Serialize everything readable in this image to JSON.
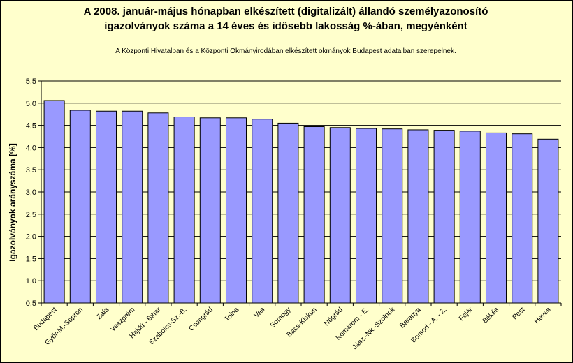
{
  "chart_data": {
    "type": "bar",
    "title": [
      "A 2008. január-május hónapban elkészített (digitalizált) állandó személyazonosító",
      "igazolványok száma a 14 éves és idősebb lakosság %-ában, megyénként"
    ],
    "subtitle": "A  Központi Hivatalban és a Központi Okmányirodában elkészített  okmányok Budapest adataiban szerepelnek.",
    "xlabel": "",
    "ylabel": "Igazolványok arányszáma [%]",
    "ylim": [
      0.5,
      5.5
    ],
    "yticks": [
      "0,5",
      "1,0",
      "1,5",
      "2,0",
      "2,5",
      "3,0",
      "3,5",
      "4,0",
      "4,5",
      "5,0",
      "5,5"
    ],
    "grid": true,
    "bar_color": "#9999ff",
    "categories": [
      "Budapest",
      "Győr-M.-Sopron",
      "Zala",
      "Veszprém",
      "Hajdú - Bihar",
      "Szabolcs-Sz.-B.",
      "Csongrád",
      "Tolna",
      "Vas",
      "Somogy",
      "Bács-Kiskun",
      "Nógrád",
      "Komárom - E.",
      "Jász.-Nk.-Szolnok",
      "Baranya",
      "Borsod - A. - Z.",
      "Fejér",
      "Békés",
      "Pest",
      "Heves"
    ],
    "values": [
      5.06,
      4.84,
      4.82,
      4.82,
      4.78,
      4.69,
      4.67,
      4.67,
      4.64,
      4.55,
      4.47,
      4.45,
      4.43,
      4.42,
      4.4,
      4.39,
      4.37,
      4.33,
      4.31,
      4.19
    ]
  }
}
